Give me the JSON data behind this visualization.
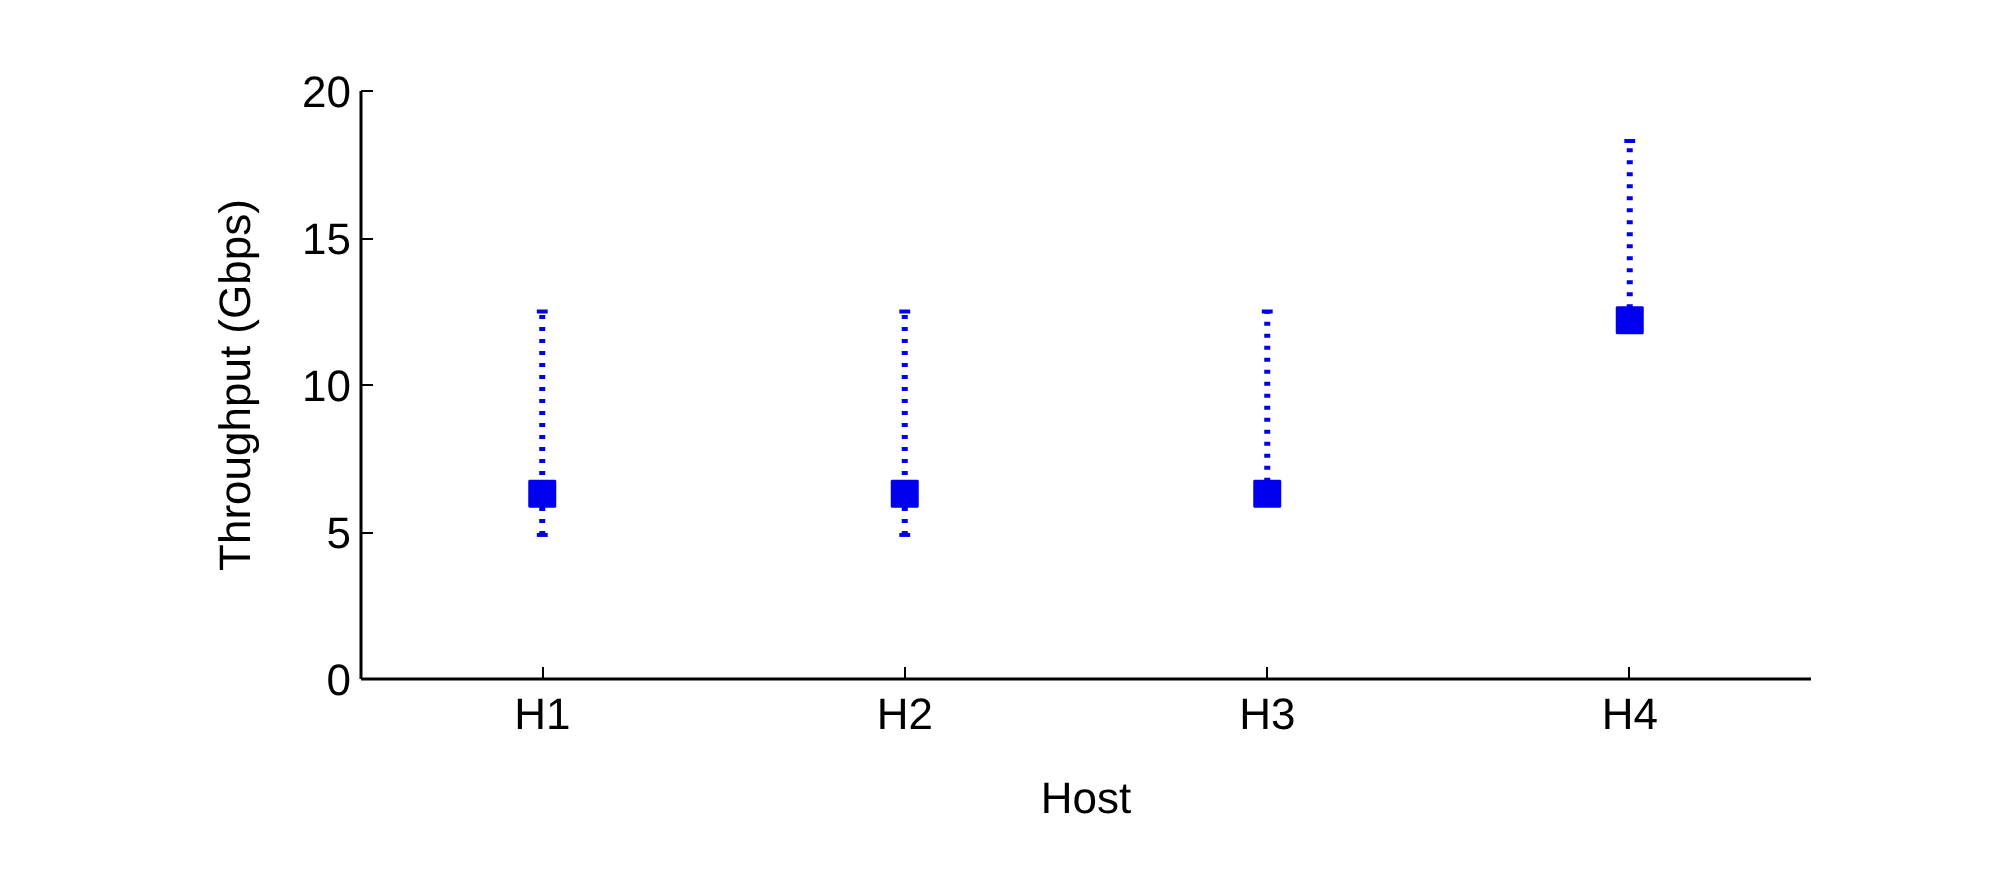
{
  "chart_data": {
    "type": "scatter",
    "xlabel": "Host",
    "ylabel": "Throughput (Gbps)",
    "categories": [
      "H1",
      "H2",
      "H3",
      "H4"
    ],
    "series": [
      {
        "color": "#0000ee",
        "values": [
          6.3,
          6.3,
          6.3,
          12.2
        ],
        "errors": [
          [
            4.9,
            12.5
          ],
          [
            4.9,
            12.5
          ],
          [
            6.3,
            12.5
          ],
          [
            12.2,
            18.3
          ]
        ]
      }
    ],
    "ylim": [
      0,
      20
    ],
    "yticks": [
      0,
      5,
      10,
      15,
      20
    ],
    "marker": "square",
    "line_style": "dotted",
    "grid": false
  }
}
